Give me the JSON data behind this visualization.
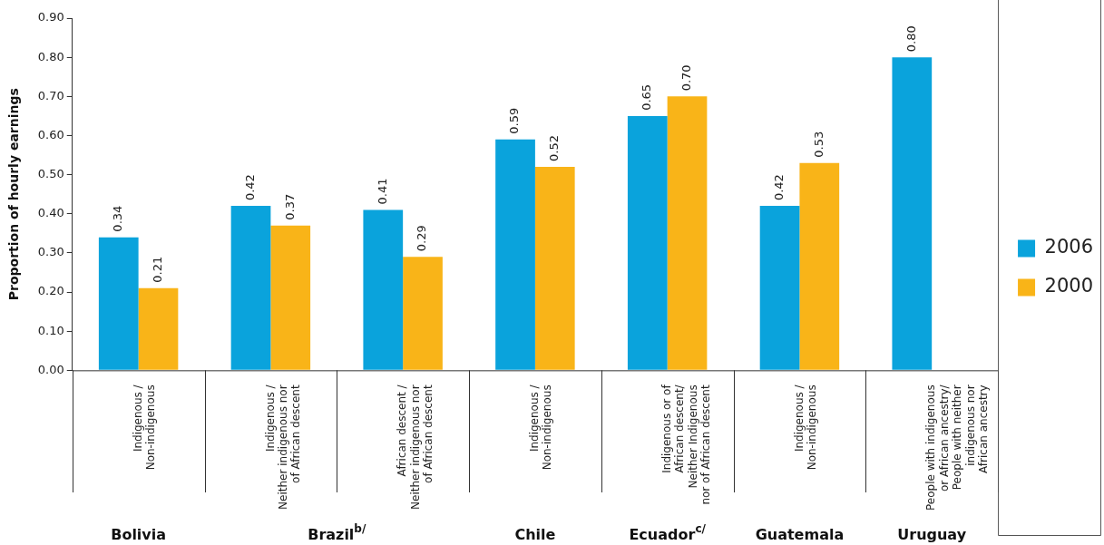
{
  "chart_data": {
    "type": "bar",
    "ylabel": "Proportion of hourly earnings",
    "categories": [
      "Indigenous /\nNon-indigenous",
      "Indigenous /\nNeither indigenous nor\nof African descent",
      "African descent /\nNeither indigenous nor\nof African descent",
      "Indigenous /\nNon-indigenous",
      "Indigenous or of\nAfrican descent/\nNeither Indigenous\nnor of African descent",
      "Indigenous /\nNon-indigenous",
      "People with indigenous\nor African ancestry/\nPeople with neither\nindigenous nor\nAfrican ancestry"
    ],
    "series": [
      {
        "name": "2006",
        "color": "#0aa3dc",
        "values": [
          0.34,
          0.42,
          0.41,
          0.59,
          0.65,
          0.42,
          0.8
        ],
        "value_labels": [
          "0.34",
          "0.42",
          "0.41",
          "0.59",
          "0.65",
          "0.42",
          "0.80"
        ]
      },
      {
        "name": "2000",
        "color": "#f9b418",
        "values": [
          0.21,
          0.37,
          0.29,
          0.52,
          0.7,
          0.53,
          null
        ],
        "value_labels": [
          "0.21",
          "0.37",
          "0.29",
          "0.52",
          "0.70",
          "0.53",
          null
        ]
      }
    ],
    "ylim": [
      0,
      0.9
    ],
    "yticks": [
      {
        "value": 0,
        "label": "0.00"
      },
      {
        "value": 0.1,
        "label": "0.10"
      },
      {
        "value": 0.2,
        "label": "0.20"
      },
      {
        "value": 0.3,
        "label": "0.30"
      },
      {
        "value": 0.4,
        "label": "0.40"
      },
      {
        "value": 0.5,
        "label": "0.50"
      },
      {
        "value": 0.6,
        "label": "0.60"
      },
      {
        "value": 0.7,
        "label": "0.70"
      },
      {
        "value": 0.8,
        "label": "0.80"
      },
      {
        "value": 0.9,
        "label": "0.90"
      }
    ],
    "grid": false,
    "legend": "right",
    "annotations": [
      "Bolivia",
      "Brazil$^{b/}$",
      "Chile",
      "Ecuador$^{c/}$",
      "Guatemala",
      "Uruguay"
    ]
  }
}
